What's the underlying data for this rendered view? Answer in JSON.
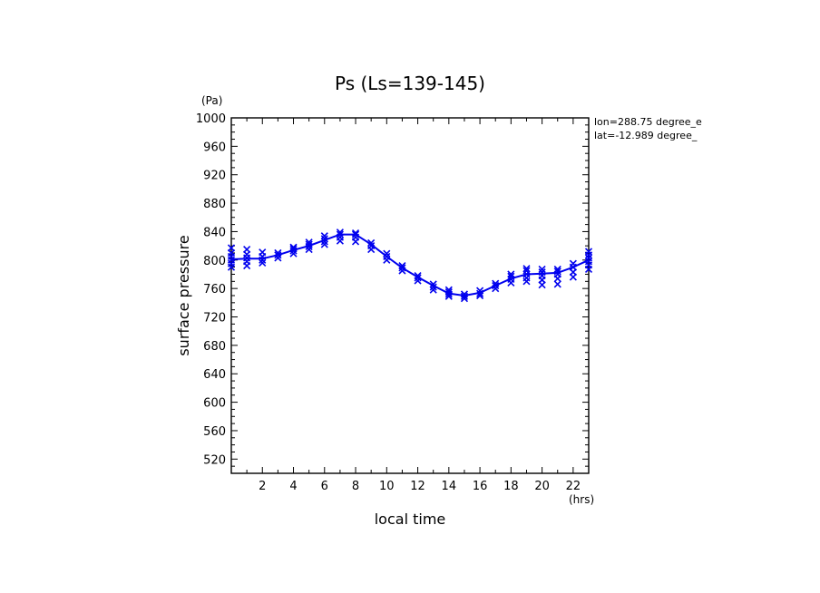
{
  "chart_data": {
    "type": "scatter",
    "title": "Ps (Ls=139-145)",
    "xlabel": "local time",
    "ylabel": "surface pressure",
    "x_unit": "(hrs)",
    "y_unit": "(Pa)",
    "info_lines": [
      "lon=288.75 degree_e",
      "lat=-12.989 degree_"
    ],
    "xlim": [
      0,
      23
    ],
    "ylim": [
      500,
      1000
    ],
    "x_ticks": [
      2,
      4,
      6,
      8,
      10,
      12,
      14,
      16,
      18,
      20,
      22
    ],
    "y_ticks": [
      520,
      560,
      600,
      640,
      680,
      720,
      760,
      800,
      840,
      880,
      920,
      960,
      1000
    ],
    "grid": false,
    "colors": {
      "series": "#0000ee",
      "axis": "#000000"
    },
    "series": [
      {
        "type": "line",
        "x": [
          0,
          1,
          2,
          3,
          4,
          5,
          6,
          7,
          8,
          9,
          10,
          11,
          12,
          13,
          14,
          15,
          16,
          17,
          18,
          19,
          20,
          21,
          22,
          23
        ],
        "y": [
          801,
          802,
          802,
          807,
          814,
          820,
          828,
          836,
          836,
          822,
          805,
          789,
          776,
          764,
          753,
          750,
          754,
          764,
          774,
          780,
          781,
          782,
          790,
          800
        ]
      },
      {
        "type": "scatter",
        "marker": "x",
        "points": [
          [
            0,
            790
          ],
          [
            0,
            795
          ],
          [
            0,
            800
          ],
          [
            0,
            805
          ],
          [
            0,
            810
          ],
          [
            0,
            817
          ],
          [
            1,
            792
          ],
          [
            1,
            798
          ],
          [
            1,
            803
          ],
          [
            1,
            808
          ],
          [
            1,
            815
          ],
          [
            2,
            796
          ],
          [
            2,
            800
          ],
          [
            2,
            805
          ],
          [
            2,
            811
          ],
          [
            3,
            803
          ],
          [
            3,
            807
          ],
          [
            3,
            810
          ],
          [
            4,
            809
          ],
          [
            4,
            813
          ],
          [
            4,
            816
          ],
          [
            4,
            818
          ],
          [
            5,
            815
          ],
          [
            5,
            819
          ],
          [
            5,
            822
          ],
          [
            5,
            825
          ],
          [
            6,
            822
          ],
          [
            6,
            826
          ],
          [
            6,
            830
          ],
          [
            6,
            834
          ],
          [
            7,
            827
          ],
          [
            7,
            832
          ],
          [
            7,
            836
          ],
          [
            7,
            839
          ],
          [
            8,
            826
          ],
          [
            8,
            832
          ],
          [
            8,
            836
          ],
          [
            8,
            838
          ],
          [
            9,
            815
          ],
          [
            9,
            820
          ],
          [
            9,
            824
          ],
          [
            10,
            800
          ],
          [
            10,
            805
          ],
          [
            10,
            809
          ],
          [
            11,
            785
          ],
          [
            11,
            789
          ],
          [
            11,
            792
          ],
          [
            12,
            771
          ],
          [
            12,
            775
          ],
          [
            12,
            778
          ],
          [
            13,
            758
          ],
          [
            13,
            762
          ],
          [
            13,
            766
          ],
          [
            14,
            749
          ],
          [
            14,
            752
          ],
          [
            14,
            755
          ],
          [
            14,
            758
          ],
          [
            15,
            746
          ],
          [
            15,
            749
          ],
          [
            15,
            752
          ],
          [
            16,
            750
          ],
          [
            16,
            753
          ],
          [
            16,
            757
          ],
          [
            17,
            760
          ],
          [
            17,
            764
          ],
          [
            17,
            767
          ],
          [
            18,
            768
          ],
          [
            18,
            773
          ],
          [
            18,
            777
          ],
          [
            18,
            780
          ],
          [
            19,
            770
          ],
          [
            19,
            775
          ],
          [
            19,
            780
          ],
          [
            19,
            785
          ],
          [
            19,
            788
          ],
          [
            20,
            765
          ],
          [
            20,
            772
          ],
          [
            20,
            778
          ],
          [
            20,
            783
          ],
          [
            20,
            787
          ],
          [
            21,
            766
          ],
          [
            21,
            774
          ],
          [
            21,
            780
          ],
          [
            21,
            784
          ],
          [
            21,
            787
          ],
          [
            22,
            776
          ],
          [
            22,
            783
          ],
          [
            22,
            790
          ],
          [
            22,
            795
          ],
          [
            23,
            787
          ],
          [
            23,
            793
          ],
          [
            23,
            798
          ],
          [
            23,
            803
          ],
          [
            23,
            807
          ],
          [
            23,
            812
          ]
        ]
      }
    ]
  }
}
